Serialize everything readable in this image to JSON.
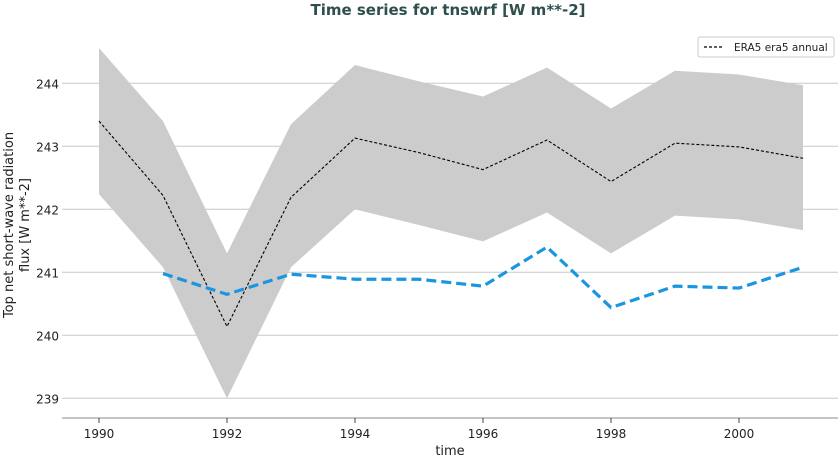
{
  "chart_data": {
    "type": "line",
    "title": "Time series for tnswrf [W m**-2]",
    "xlabel": "time",
    "ylabel_lines": [
      "Top net short-wave radiation",
      "flux [W m**-2]"
    ],
    "xlim": [
      1989.4,
      2001.5
    ],
    "ylim": [
      238.7,
      244.85
    ],
    "xticks": [
      1990,
      1992,
      1994,
      1996,
      1998,
      2000
    ],
    "yticks": [
      239,
      240,
      241,
      242,
      243,
      244
    ],
    "grid": "horizontal",
    "legend_position": "top-right",
    "x": [
      1990,
      1991,
      1992,
      1993,
      1994,
      1995,
      1996,
      1997,
      1998,
      1999,
      2000,
      2001
    ],
    "band": {
      "color": "#cccccc",
      "upper": [
        244.56,
        243.4,
        241.3,
        243.35,
        244.29,
        244.03,
        243.79,
        244.25,
        243.6,
        244.2,
        244.14,
        243.97
      ],
      "lower": [
        242.24,
        241.08,
        239.0,
        241.08,
        242.0,
        241.75,
        241.49,
        241.95,
        241.3,
        241.9,
        241.84,
        241.67
      ]
    },
    "series": [
      {
        "name": "ERA5 era5 annual",
        "color": "#000000",
        "style": "dashed-thin",
        "values": [
          243.4,
          242.22,
          240.14,
          242.19,
          243.13,
          242.9,
          242.63,
          243.1,
          242.44,
          243.05,
          242.99,
          242.81
        ]
      },
      {
        "color": "#1a96e0",
        "style": "dashed-thick",
        "values": [
          null,
          240.98,
          240.65,
          240.97,
          240.89,
          240.89,
          240.78,
          241.4,
          240.44,
          240.78,
          240.75,
          241.08
        ]
      }
    ]
  }
}
